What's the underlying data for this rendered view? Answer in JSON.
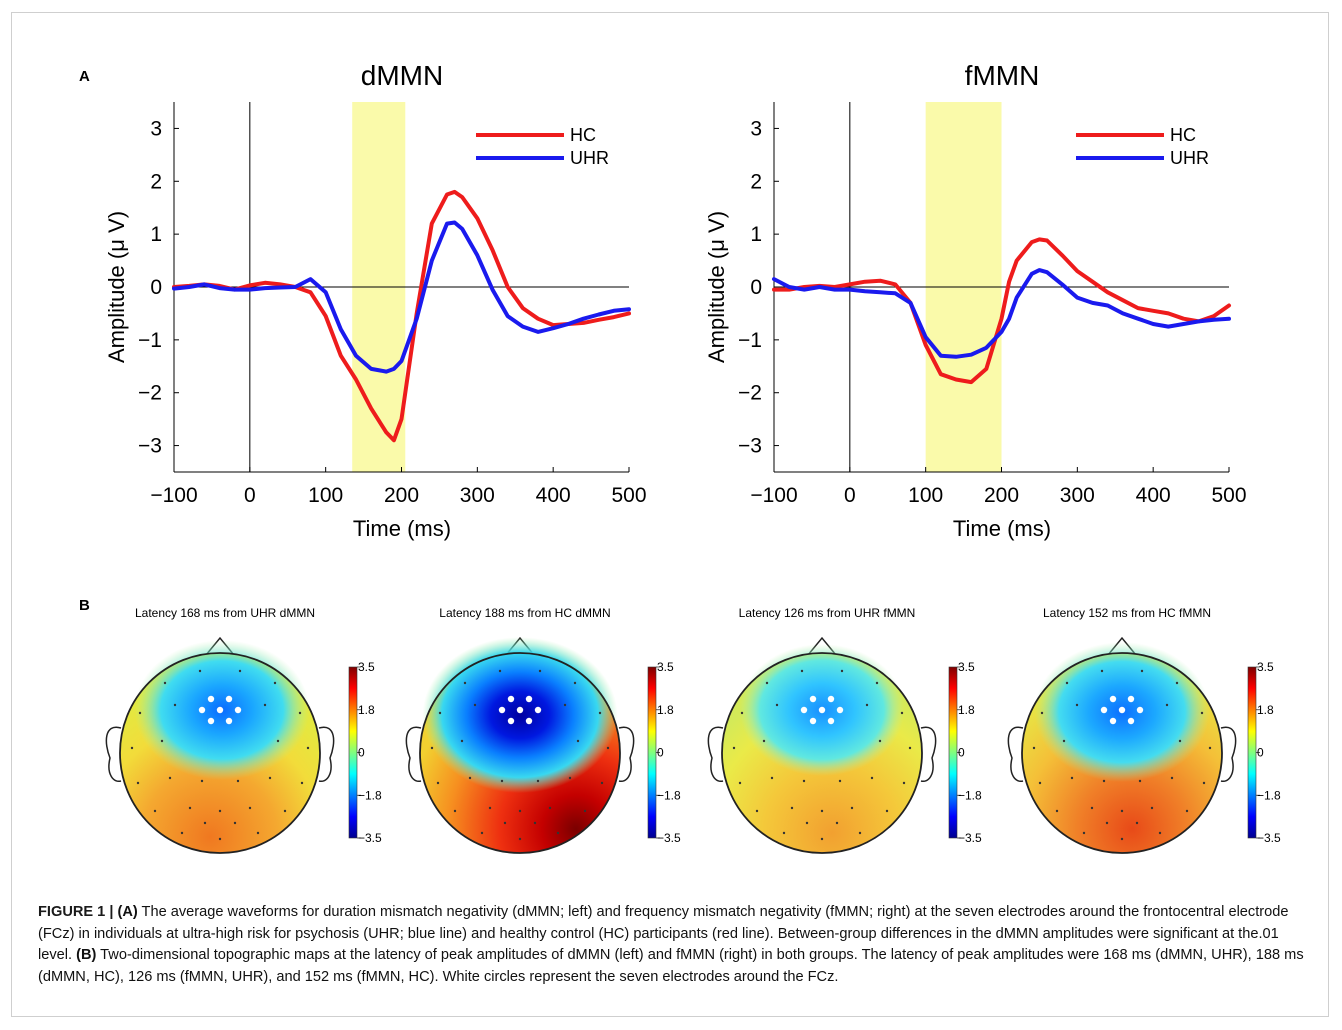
{
  "figure": {
    "panel_a_label": "A",
    "panel_b_label": "B"
  },
  "chart_data": [
    {
      "type": "line",
      "title": "dMMN",
      "xlabel": "Time (ms)",
      "ylabel": "Amplitude (μ V)",
      "xlim": [
        -100,
        500
      ],
      "ylim": [
        -3.5,
        3.5
      ],
      "xticks": [
        "−100",
        "0",
        "100",
        "200",
        "300",
        "400",
        "500"
      ],
      "yticks": [
        "3",
        "2",
        "1",
        "0",
        "−1",
        "−2",
        "−3"
      ],
      "highlight": {
        "x_from": 135,
        "x_to": 205,
        "color": "#fafaaa"
      },
      "legend_position": "top-right",
      "x": [
        -100,
        -80,
        -60,
        -40,
        -20,
        0,
        20,
        40,
        60,
        80,
        100,
        120,
        140,
        160,
        180,
        190,
        200,
        220,
        240,
        260,
        270,
        280,
        300,
        320,
        340,
        360,
        380,
        400,
        420,
        440,
        460,
        480,
        500
      ],
      "series": [
        {
          "name": "HC",
          "color": "#ee1c1c",
          "values": [
            0.0,
            0.02,
            0.05,
            0.02,
            -0.05,
            0.03,
            0.08,
            0.05,
            0.0,
            -0.1,
            -0.55,
            -1.3,
            -1.75,
            -2.3,
            -2.75,
            -2.9,
            -2.5,
            -0.5,
            1.2,
            1.75,
            1.8,
            1.7,
            1.3,
            0.7,
            0.0,
            -0.4,
            -0.6,
            -0.72,
            -0.7,
            -0.68,
            -0.62,
            -0.57,
            -0.5
          ]
        },
        {
          "name": "UHR",
          "color": "#1a1aee",
          "values": [
            -0.03,
            0.0,
            0.05,
            -0.02,
            -0.05,
            -0.05,
            -0.02,
            -0.01,
            0.0,
            0.15,
            -0.1,
            -0.8,
            -1.3,
            -1.55,
            -1.6,
            -1.55,
            -1.4,
            -0.6,
            0.5,
            1.2,
            1.22,
            1.1,
            0.6,
            -0.05,
            -0.55,
            -0.75,
            -0.85,
            -0.78,
            -0.7,
            -0.6,
            -0.52,
            -0.45,
            -0.42
          ]
        }
      ]
    },
    {
      "type": "line",
      "title": "fMMN",
      "xlabel": "Time (ms)",
      "ylabel": "Amplitude (μ V)",
      "xlim": [
        -100,
        500
      ],
      "ylim": [
        -3.5,
        3.5
      ],
      "xticks": [
        "−100",
        "0",
        "100",
        "200",
        "300",
        "400",
        "500"
      ],
      "yticks": [
        "3",
        "2",
        "1",
        "0",
        "−1",
        "−2",
        "−3"
      ],
      "highlight": {
        "x_from": 100,
        "x_to": 200,
        "color": "#fafaaa"
      },
      "legend_position": "top-right",
      "x": [
        -100,
        -80,
        -60,
        -40,
        -20,
        0,
        20,
        40,
        60,
        80,
        100,
        120,
        140,
        160,
        180,
        200,
        210,
        220,
        240,
        250,
        260,
        280,
        300,
        320,
        340,
        360,
        380,
        400,
        420,
        440,
        460,
        480,
        500
      ],
      "series": [
        {
          "name": "HC",
          "color": "#ee1c1c",
          "values": [
            -0.05,
            -0.05,
            0.0,
            0.02,
            0.0,
            0.05,
            0.1,
            0.12,
            0.05,
            -0.3,
            -1.1,
            -1.65,
            -1.75,
            -1.8,
            -1.55,
            -0.6,
            0.1,
            0.5,
            0.85,
            0.9,
            0.88,
            0.6,
            0.3,
            0.1,
            -0.1,
            -0.25,
            -0.4,
            -0.45,
            -0.5,
            -0.6,
            -0.65,
            -0.55,
            -0.35
          ]
        },
        {
          "name": "UHR",
          "color": "#1a1aee",
          "values": [
            0.15,
            0.0,
            -0.05,
            0.0,
            -0.05,
            -0.05,
            -0.08,
            -0.1,
            -0.12,
            -0.3,
            -0.95,
            -1.3,
            -1.32,
            -1.28,
            -1.15,
            -0.85,
            -0.6,
            -0.2,
            0.25,
            0.32,
            0.28,
            0.05,
            -0.2,
            -0.3,
            -0.35,
            -0.5,
            -0.6,
            -0.7,
            -0.75,
            -0.7,
            -0.65,
            -0.62,
            -0.6
          ]
        }
      ]
    }
  ],
  "topomaps": [
    {
      "title": "Latency 168 ms from UHR dMMN",
      "scale": [
        "3.5",
        "1.8",
        "0",
        "−1.8",
        "−3.5"
      ]
    },
    {
      "title": "Latency 188 ms from HC dMMN",
      "scale": [
        "3.5",
        "1.8",
        "0",
        "−1.8",
        "−3.5"
      ]
    },
    {
      "title": "Latency 126 ms from UHR fMMN",
      "scale": [
        "3.5",
        "1.8",
        "0",
        "−1.8",
        "−3.5"
      ]
    },
    {
      "title": "Latency 152 ms from HC fMMN",
      "scale": [
        "3.5",
        "1.8",
        "0",
        "−1.8",
        "−3.5"
      ]
    }
  ],
  "caption": {
    "label": "FIGURE 1 | ",
    "part_a_tag": "(A)",
    "part_a_text": " The average waveforms for duration mismatch negativity (dMMN; left) and frequency mismatch negativity (fMMN; right) at the seven electrodes around the frontocentral electrode (FCz) in individuals at ultra-high risk for psychosis (UHR; blue line) and healthy control (HC) participants (red line). Between-group differences in the dMMN amplitudes were significant at the.01 level. ",
    "part_b_tag": "(B)",
    "part_b_text": " Two-dimensional topographic maps at the latency of peak amplitudes of dMMN (left) and fMMN (right) in both groups. The latency of peak amplitudes were 168 ms (dMMN, UHR), 188 ms (dMMN, HC), 126 ms (fMMN, UHR), and 152 ms (fMMN, HC). White circles represent the seven electrodes around the FCz."
  }
}
